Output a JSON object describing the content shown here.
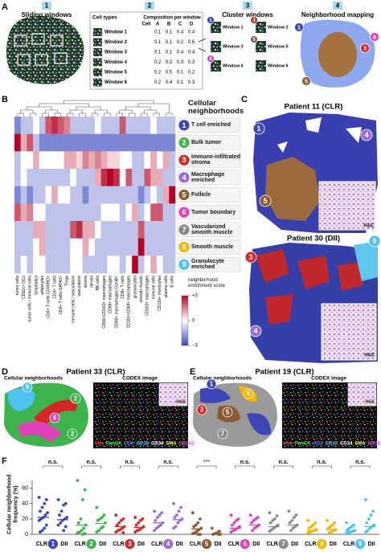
{
  "panel_letters": [
    "A",
    "B",
    "C",
    "D",
    "E",
    "F"
  ],
  "panels": {
    "a": {
      "steps": [
        {
          "number": "1",
          "label": "Sliding windows"
        },
        {
          "number": "2"
        },
        {
          "number": "3",
          "label": "Cluster windows"
        },
        {
          "number": "4",
          "label": "Neighborhood mapping"
        }
      ],
      "table": {
        "title": "Cell types",
        "subtitle": "Composition per window",
        "column_header": "Cell",
        "columns": [
          "A",
          "B",
          "C",
          "D"
        ],
        "rows": [
          {
            "window": "Window 1",
            "values": [
              0.1,
              0.1,
              0.4,
              0.4
            ]
          },
          {
            "window": "Window 2",
            "values": [
              0.1,
              0.1,
              0.2,
              0.6
            ]
          },
          {
            "window": "Window 3",
            "values": [
              0.1,
              0.1,
              0.4,
              0.4
            ]
          },
          {
            "window": "Window 4",
            "values": [
              0.2,
              0.2,
              0.3,
              0.3
            ]
          },
          {
            "window": "Window 5",
            "values": [
              0.2,
              0.5,
              0.1,
              0.2
            ]
          },
          {
            "window": "Window 6",
            "values": [
              0.2,
              0.4,
              0.1,
              0.3
            ]
          }
        ]
      },
      "clusters": [
        {
          "marker": "1",
          "window": "Window 1"
        },
        {
          "window": "Window 3"
        },
        {
          "marker": "6",
          "window": "Window 4"
        },
        {
          "marker": "3",
          "window": "Window 2"
        },
        {
          "marker": "5",
          "window": "Window 5"
        },
        {
          "window": "Window 6"
        }
      ],
      "mapping_markers": [
        "1",
        "6",
        "3",
        "5"
      ]
    },
    "c": {
      "maps": [
        {
          "title": "Patient 11 (CLR)",
          "markers": [
            "1",
            "4",
            "5"
          ],
          "inset": "H&E"
        },
        {
          "title": "Patient 30 (DII)",
          "markers": [
            "3",
            "9",
            "4"
          ],
          "inset": "H&E"
        }
      ]
    },
    "d": {
      "title": "Patient 33 (CLR)",
      "map_label": "Cellular neighborhoods",
      "image_label": "CODEX image",
      "inset": "H&E",
      "markers": [
        "9",
        "2",
        "6",
        "2"
      ]
    },
    "e": {
      "title": "Patient 19 (CLR)",
      "map_label": "Cellular neighborhoods",
      "image_label": "CODEX image",
      "inset": "H&E",
      "markers": [
        "1",
        "3",
        "5",
        "8",
        "7"
      ]
    },
    "codex_legend": [
      {
        "name": "Vim",
        "color": "#ff3b3b"
      },
      {
        "name": "PanCK",
        "color": "#3cff3c"
      },
      {
        "name": "CD3",
        "color": "#5a78ff"
      },
      {
        "name": "CD15",
        "color": "#22e0ff"
      },
      {
        "name": "CD34",
        "color": "#ffffff"
      },
      {
        "name": "SMA",
        "color": "#ffff30"
      },
      {
        "name": "CD163",
        "color": "#ff48ff"
      }
    ]
  },
  "chart_data": [
    {
      "type": "heatmap",
      "y_title": "Cellular neighborhoods",
      "x_categories": [
        "tumor cells",
        "CD11c+ DCs",
        "tumor cells / immune cells",
        "lymphatics",
        "adipocytes",
        "CD4+ T cells CD45RO+",
        "CD4+ T cells",
        "CD4+ T cells GATA3+",
        "Tregs",
        "immune cells / vasculature",
        "vasculature",
        "stroma",
        "nerves",
        "NK cells",
        "CD68+CD163+ macrophages",
        "CD68+ macrophages",
        "CD68+ macrophages GzmB+",
        "CD8+ T cells",
        "CD11b+CD68+ macrophages",
        "granulocytes",
        "smooth muscle",
        "CD163+ macrophages",
        "immune cells",
        "CD11b+ monocytes",
        "plasma cells",
        "B cells"
      ],
      "y_categories": [
        {
          "number": "1",
          "name": "T cell enriched",
          "color": "#3d45b8"
        },
        {
          "number": "2",
          "name": "Bulk tumor",
          "color": "#3cb44b"
        },
        {
          "number": "3",
          "name": "Immune-infiltrated stroma",
          "color": "#d62728"
        },
        {
          "number": "4",
          "name": "Macrophage enriched",
          "color": "#9b6bd0"
        },
        {
          "number": "5",
          "name": "Follicle",
          "color": "#8c5a32"
        },
        {
          "number": "6",
          "name": "Tumor boundary",
          "color": "#e040b8"
        },
        {
          "number": "7",
          "name": "Vascularized smooth muscle",
          "color": "#8a8a8a"
        },
        {
          "number": "8",
          "name": "Smooth muscle",
          "color": "#f2b600"
        },
        {
          "number": "9",
          "name": "Granulocyte enriched",
          "color": "#4ec3f0"
        }
      ],
      "values": [
        [
          -2,
          -1,
          -1,
          0,
          -1,
          2,
          2.5,
          2,
          1.5,
          -1,
          -1,
          -1,
          -1,
          0,
          -1,
          -1,
          -1,
          2,
          -1,
          -1,
          -1,
          -1,
          0,
          -1,
          -1,
          -1
        ],
        [
          3,
          1,
          2,
          -1,
          -2,
          -2,
          -2,
          -2,
          -2,
          -2,
          -2,
          -2,
          -2,
          -2,
          -2,
          -2,
          -2,
          -2,
          -2,
          -2,
          -2,
          -2,
          -2,
          -2,
          -2,
          -2
        ],
        [
          -1,
          0,
          0,
          1,
          0,
          0,
          0,
          0,
          1,
          1,
          0.5,
          1.5,
          1,
          1.5,
          1,
          0.5,
          0.5,
          0,
          0,
          -1,
          -1,
          0,
          1,
          0,
          1,
          -1
        ],
        [
          -1,
          0,
          -1,
          -1,
          -1,
          -1,
          -1,
          -1,
          -1,
          0,
          -1,
          -1,
          -1,
          1,
          2.5,
          3,
          2.5,
          0,
          2,
          -1,
          -1,
          2,
          1,
          1,
          -1,
          -1
        ],
        [
          -2,
          -1,
          -2,
          -1,
          -1,
          0,
          1,
          0,
          0,
          -1,
          -1,
          -2,
          -1,
          -1,
          -1,
          -1,
          -1,
          -1,
          -1,
          -1,
          -2,
          -1,
          0,
          -1,
          1,
          3
        ],
        [
          2,
          1,
          1.5,
          0,
          0,
          -1,
          -1,
          -1,
          -1,
          -1,
          -1,
          -1,
          -1,
          -1,
          0,
          0,
          0,
          -1,
          0,
          1,
          -1,
          0,
          2,
          2,
          -1,
          -1
        ],
        [
          -1,
          -1,
          -1,
          1,
          1,
          -1,
          -1,
          -1,
          -1,
          2,
          2.5,
          1,
          1,
          0,
          -1,
          -1,
          -1,
          -1,
          -1,
          -1,
          2,
          -1,
          -1,
          -1,
          -1,
          -1
        ],
        [
          -1,
          -1,
          -1,
          0,
          1,
          -1,
          -1,
          -1,
          -1,
          0,
          0,
          1,
          0,
          -1,
          -1,
          -1,
          -1,
          -1,
          -1,
          -1,
          3,
          -1,
          -1,
          -1,
          -1,
          -1
        ],
        [
          -1,
          0,
          -1,
          0,
          0,
          -1,
          -1,
          -1,
          -1,
          0,
          0,
          -1,
          -1,
          -1,
          -1,
          0,
          0,
          -1,
          0,
          3,
          -1,
          0,
          1,
          0,
          -1,
          -1
        ]
      ],
      "zlim": [
        -3,
        3
      ],
      "zticks": [
        {
          "value": 3,
          "label": "+3"
        },
        0,
        {
          "value": -3,
          "label": "−3"
        }
      ],
      "colorbar_label": "neighborhood enrichment score",
      "cmap": [
        "#3b4cc0",
        "#ffffff",
        "#b40426"
      ]
    },
    {
      "type": "dotplot",
      "ylabel": "Cellular neighborhood frequency (%)",
      "ylim": [
        0,
        70
      ],
      "yticks": [
        0,
        20,
        40,
        60
      ],
      "categories": [
        "1",
        "2",
        "3",
        "4",
        "5",
        "6",
        "7",
        "8",
        "9"
      ],
      "colors": [
        "#3d45b8",
        "#3cb44b",
        "#d62728",
        "#9b6bd0",
        "#8c5a32",
        "#e040b8",
        "#8a8a8a",
        "#f2b600",
        "#4ec3f0"
      ],
      "annotations": [
        "n.s.",
        "n.s.",
        "n.s.",
        "n.s.",
        "***",
        "n.s.",
        "n.s.",
        "n.s.",
        "n.s."
      ],
      "series": [
        {
          "name": "CLR",
          "values": [
            [
              48,
              45,
              40,
              35,
              30,
              28,
              25,
              22,
              20,
              18,
              12,
              8,
              5,
              3
            ],
            [
              70,
              58,
              45,
              20,
              15,
              12,
              8,
              5,
              3,
              2,
              1,
              0
            ],
            [
              25,
              20,
              18,
              15,
              12,
              10,
              8,
              6,
              5,
              3,
              2
            ],
            [
              30,
              28,
              25,
              22,
              18,
              15,
              12,
              10,
              8,
              5
            ],
            [
              28,
              20,
              15,
              12,
              10,
              8,
              6,
              4,
              2,
              1,
              0,
              0
            ],
            [
              25,
              20,
              18,
              15,
              12,
              10,
              8,
              6,
              5,
              3
            ],
            [
              28,
              24,
              20,
              18,
              15,
              12,
              10,
              8,
              6,
              4
            ],
            [
              18,
              15,
              12,
              10,
              8,
              6,
              5,
              4,
              3,
              2
            ],
            [
              15,
              12,
              10,
              8,
              6,
              5,
              4,
              3,
              2,
              1
            ]
          ],
          "medians": [
            22,
            12,
            10,
            15,
            7,
            8,
            10,
            5,
            4
          ]
        },
        {
          "name": "DII",
          "values": [
            [
              45,
              40,
              38,
              30,
              25,
              22,
              20,
              18,
              15,
              12,
              10,
              5
            ],
            [
              35,
              25,
              22,
              20,
              18,
              15,
              10,
              8,
              5,
              3
            ],
            [
              22,
              20,
              18,
              15,
              12,
              10,
              8,
              6,
              5,
              3
            ],
            [
              40,
              35,
              30,
              25,
              22,
              20,
              18,
              15,
              10,
              8
            ],
            [
              8,
              4,
              2,
              1,
              0,
              0,
              0
            ],
            [
              25,
              22,
              20,
              18,
              15,
              12,
              10,
              8,
              5
            ],
            [
              30,
              25,
              22,
              18,
              15,
              12,
              10,
              8,
              5
            ],
            [
              18,
              15,
              12,
              10,
              8,
              6,
              5,
              3,
              2
            ],
            [
              45,
              30,
              25,
              20,
              15,
              12,
              10,
              8,
              5,
              3
            ]
          ],
          "medians": [
            19,
            14,
            9,
            19,
            0,
            12,
            12,
            6,
            10
          ]
        }
      ]
    }
  ]
}
